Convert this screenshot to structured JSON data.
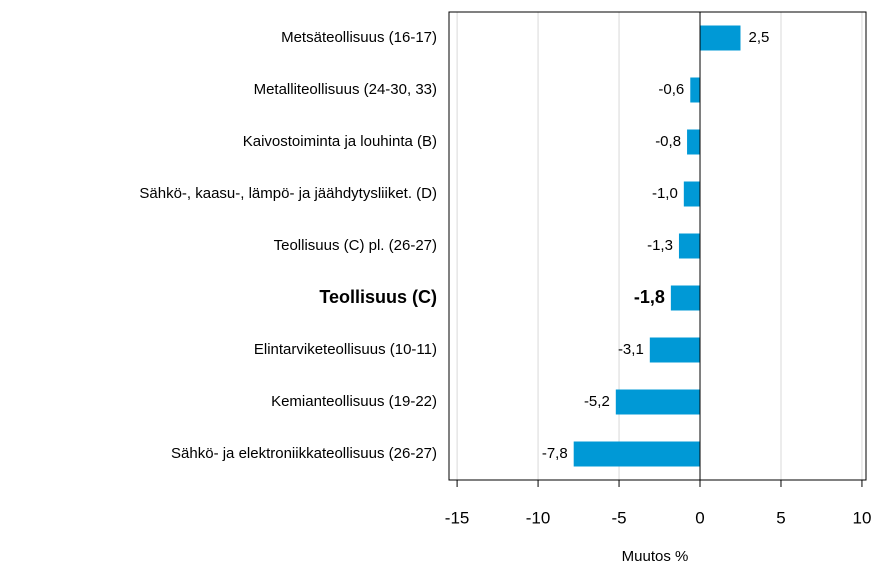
{
  "chart_data": {
    "type": "bar",
    "orientation": "horizontal",
    "categories": [
      "Metsäteollisuus (16-17)",
      "Metalliteollisuus (24-30, 33)",
      "Kaivostoiminta  ja louhinta (B)",
      "Sähkö-, kaasu-, lämpö- ja jäähdytysliiket. (D)",
      "Teollisuus (C) pl. (26-27)",
      "Teollisuus (C)",
      "Elintarviketeollisuus (10-11)",
      "Kemianteollisuus (19-22)",
      "Sähkö- ja elektroniikkateollisuus (26-27)"
    ],
    "values": [
      2.5,
      -0.6,
      -0.8,
      -1.0,
      -1.3,
      -1.8,
      -3.1,
      -5.2,
      -7.8
    ],
    "value_labels": [
      "2,5",
      "-0,6",
      "-0,8",
      "-1,0",
      "-1,3",
      "-1,8",
      "-3,1",
      "-5,2",
      "-7,8"
    ],
    "bold": [
      false,
      false,
      false,
      false,
      false,
      true,
      false,
      false,
      false
    ],
    "color": "#0099d6",
    "xlim": [
      -15.5,
      10.25
    ],
    "xticks": [
      -15,
      -10,
      -5,
      0,
      5,
      10
    ],
    "xlabel": "Muutos %",
    "grid": true
  }
}
